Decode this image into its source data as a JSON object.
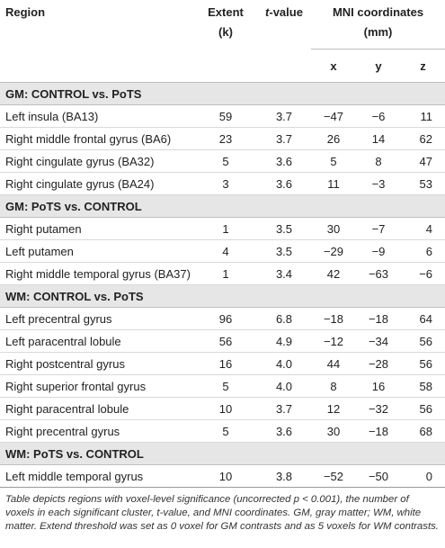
{
  "header": {
    "region": "Region",
    "extent": "Extent",
    "extent_unit": "(k)",
    "t_value_italic": "t",
    "t_value_rest": "-value",
    "mni": "MNI coordinates",
    "mni_unit": "(mm)",
    "x": "x",
    "y": "y",
    "z": "z"
  },
  "sections": [
    {
      "title": "GM: CONTROL vs. PoTS",
      "rows": [
        {
          "region": "Left insula (BA13)",
          "extent": "59",
          "t": "3.7",
          "x": "−47",
          "y": "−6",
          "z": "11"
        },
        {
          "region": "Right middle frontal gyrus (BA6)",
          "extent": "23",
          "t": "3.7",
          "x": "26",
          "y": "14",
          "z": "62"
        },
        {
          "region": "Right cingulate gyrus (BA32)",
          "extent": "5",
          "t": "3.6",
          "x": "5",
          "y": "8",
          "z": "47"
        },
        {
          "region": "Right cingulate gyrus (BA24)",
          "extent": "3",
          "t": "3.6",
          "x": "11",
          "y": "−3",
          "z": "53"
        }
      ]
    },
    {
      "title": "GM: PoTS vs. CONTROL",
      "rows": [
        {
          "region": "Right putamen",
          "extent": "1",
          "t": "3.5",
          "x": "30",
          "y": "−7",
          "z": "4"
        },
        {
          "region": "Left putamen",
          "extent": "4",
          "t": "3.5",
          "x": "−29",
          "y": "−9",
          "z": "6"
        },
        {
          "region": "Right middle temporal gyrus (BA37)",
          "extent": "1",
          "t": "3.4",
          "x": "42",
          "y": "−63",
          "z": "−6"
        }
      ]
    },
    {
      "title": "WM: CONTROL vs. PoTS",
      "rows": [
        {
          "region": "Left precentral gyrus",
          "extent": "96",
          "t": "6.8",
          "x": "−18",
          "y": "−18",
          "z": "64"
        },
        {
          "region": "Left paracentral lobule",
          "extent": "56",
          "t": "4.9",
          "x": "−12",
          "y": "−34",
          "z": "56"
        },
        {
          "region": "Right postcentral gyrus",
          "extent": "16",
          "t": "4.0",
          "x": "44",
          "y": "−28",
          "z": "56"
        },
        {
          "region": "Right superior frontal gyrus",
          "extent": "5",
          "t": "4.0",
          "x": "8",
          "y": "16",
          "z": "58"
        },
        {
          "region": "Right paracentral lobule",
          "extent": "10",
          "t": "3.7",
          "x": "12",
          "y": "−32",
          "z": "56"
        },
        {
          "region": "Right precentral gyrus",
          "extent": "5",
          "t": "3.6",
          "x": "30",
          "y": "−18",
          "z": "68"
        }
      ]
    },
    {
      "title": "WM: PoTS vs. CONTROL",
      "rows": [
        {
          "region": "Left middle temporal gyrus",
          "extent": "10",
          "t": "3.8",
          "x": "−52",
          "y": "−50",
          "z": "0"
        }
      ]
    }
  ],
  "footnote": "Table depicts regions with voxel-level significance (uncorrected p < 0.001), the number of voxels in each significant cluster, t-value, and MNI coordinates. GM, gray matter; WM, white matter. Extend threshold was set as 0 voxel for GM contrasts and as 5 voxels for WM contrasts."
}
